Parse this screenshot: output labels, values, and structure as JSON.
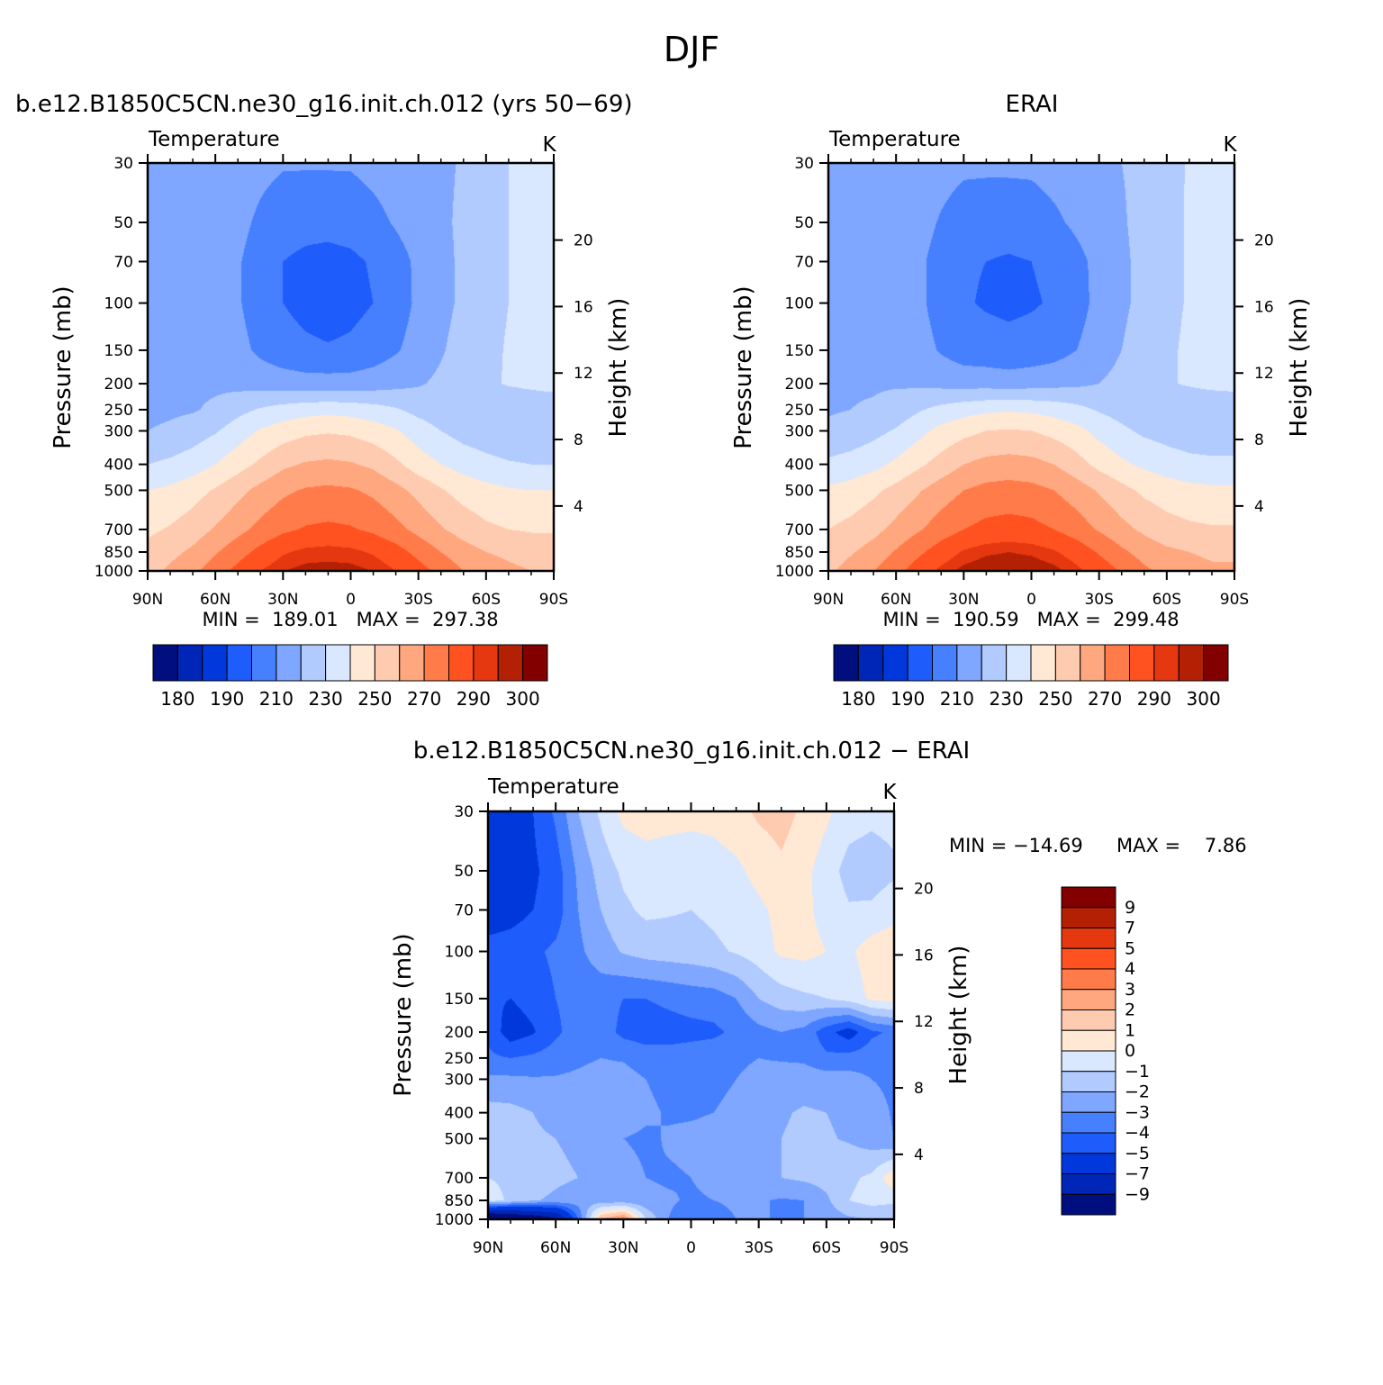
{
  "figure": {
    "season": "DJF"
  },
  "palette": {
    "temperature": [
      "#000e7e",
      "#0026b8",
      "#0038dc",
      "#1f5cfc",
      "#4680ff",
      "#7fa7ff",
      "#b2cbff",
      "#d9e8ff",
      "#ffe8d4",
      "#ffcbb0",
      "#ffa77e",
      "#ff7c4a",
      "#ff5220",
      "#e53810",
      "#b42004",
      "#820000"
    ],
    "difference": [
      "#000e7e",
      "#0026b8",
      "#0038dc",
      "#1f5cfc",
      "#4680ff",
      "#7fa7ff",
      "#b2cbff",
      "#d9e8ff",
      "#ffe8d4",
      "#ffcbb0",
      "#ffa77e",
      "#ff7c4a",
      "#ff5220",
      "#e53810",
      "#b42004",
      "#820000"
    ]
  },
  "chart_data": [
    {
      "type": "heatmap",
      "id": "model",
      "title": "b.e12.B1850C5CN.ne30_g16.init.ch.012 (yrs 50−69)",
      "subtitle": "Temperature",
      "units": "K",
      "ylabel": "Pressure (mb)",
      "ylabel_right": "Height (km)",
      "x_ticks": [
        "90N",
        "60N",
        "30N",
        "0",
        "30S",
        "60S",
        "90S"
      ],
      "y_ticks": [
        30,
        50,
        70,
        100,
        150,
        200,
        250,
        300,
        400,
        500,
        700,
        850,
        1000
      ],
      "y_right_ticks": [
        4,
        8,
        12,
        16,
        20
      ],
      "ylim": [
        1000,
        30
      ],
      "y_scale": "log",
      "stats": "MIN =  189.01   MAX =  297.38",
      "colorbar_ticks": [
        180,
        190,
        210,
        230,
        250,
        270,
        290,
        300
      ],
      "colorbar_orientation": "horizontal",
      "levels": [
        180,
        185,
        190,
        200,
        210,
        220,
        230,
        240,
        250,
        260,
        270,
        280,
        290,
        295,
        300
      ],
      "field": [
        [
          210,
          214,
          216,
          217,
          216,
          213,
          211,
          211,
          211,
          211,
          213,
          215,
          216,
          218,
          221,
          225,
          230,
          234,
          236
        ],
        [
          212,
          214,
          215,
          215,
          213,
          208,
          204,
          203,
          203,
          204,
          207,
          211,
          215,
          218,
          222,
          226,
          230,
          234,
          236
        ],
        [
          213,
          214,
          215,
          214,
          211,
          205,
          200,
          198,
          197,
          198,
          201,
          206,
          212,
          217,
          222,
          226,
          230,
          234,
          236
        ],
        [
          215,
          215,
          215,
          214,
          211,
          205,
          200,
          197,
          195,
          197,
          200,
          205,
          212,
          217,
          222,
          226,
          230,
          233,
          235
        ],
        [
          217,
          217,
          216,
          216,
          213,
          208,
          204,
          202,
          201,
          202,
          205,
          209,
          214,
          219,
          224,
          227,
          231,
          233,
          235
        ],
        [
          218,
          218,
          218,
          218,
          217,
          216,
          215,
          214,
          214,
          214,
          215,
          217,
          219,
          222,
          225,
          228,
          231,
          233,
          235
        ],
        [
          217,
          218,
          219,
          222,
          227,
          231,
          234,
          236,
          237,
          236,
          234,
          231,
          227,
          224,
          222,
          221,
          220,
          220,
          220
        ],
        [
          220,
          222,
          225,
          229,
          235,
          241,
          245,
          248,
          249,
          248,
          245,
          241,
          235,
          230,
          226,
          224,
          222,
          222,
          222
        ],
        [
          230,
          232,
          235,
          240,
          246,
          252,
          258,
          261,
          262,
          261,
          258,
          252,
          245,
          240,
          236,
          233,
          231,
          230,
          230
        ],
        [
          240,
          242,
          246,
          251,
          257,
          263,
          268,
          271,
          272,
          271,
          268,
          263,
          257,
          251,
          246,
          243,
          241,
          240,
          240
        ],
        [
          248,
          251,
          255,
          261,
          267,
          273,
          278,
          281,
          282,
          281,
          278,
          273,
          267,
          261,
          256,
          252,
          250,
          249,
          249
        ],
        [
          253,
          257,
          262,
          269,
          276,
          283,
          289,
          292,
          293,
          292,
          289,
          284,
          277,
          270,
          264,
          260,
          258,
          256,
          256
        ],
        [
          256,
          262,
          268,
          275,
          283,
          290,
          295,
          297,
          297,
          297,
          295,
          290,
          284,
          277,
          270,
          265,
          262,
          260,
          260
        ]
      ]
    },
    {
      "type": "heatmap",
      "id": "obs",
      "title": "ERAI",
      "subtitle": "Temperature",
      "units": "K",
      "ylabel": "Pressure (mb)",
      "ylabel_right": "Height (km)",
      "x_ticks": [
        "90N",
        "60N",
        "30N",
        "0",
        "30S",
        "60S",
        "90S"
      ],
      "y_ticks": [
        30,
        50,
        70,
        100,
        150,
        200,
        250,
        300,
        400,
        500,
        700,
        850,
        1000
      ],
      "y_right_ticks": [
        4,
        8,
        12,
        16,
        20
      ],
      "ylim": [
        1000,
        30
      ],
      "y_scale": "log",
      "stats": "MIN =  190.59   MAX =  299.48",
      "colorbar_ticks": [
        180,
        190,
        210,
        230,
        250,
        270,
        290,
        300
      ],
      "colorbar_orientation": "horizontal",
      "levels": [
        180,
        185,
        190,
        200,
        210,
        220,
        230,
        240,
        250,
        260,
        270,
        280,
        290,
        295,
        300
      ],
      "field": [
        [
          212,
          216,
          218,
          218,
          217,
          214,
          212,
          212,
          212,
          212,
          214,
          216,
          218,
          220,
          222,
          226,
          231,
          235,
          238
        ],
        [
          214,
          216,
          217,
          216,
          214,
          209,
          205,
          204,
          204,
          205,
          208,
          212,
          216,
          219,
          223,
          227,
          231,
          235,
          237
        ],
        [
          215,
          216,
          216,
          215,
          212,
          206,
          201,
          200,
          199,
          200,
          202,
          207,
          213,
          218,
          223,
          227,
          231,
          235,
          237
        ],
        [
          216,
          216,
          216,
          215,
          212,
          206,
          201,
          199,
          198,
          199,
          201,
          206,
          213,
          218,
          223,
          227,
          231,
          234,
          236
        ],
        [
          218,
          218,
          217,
          216,
          214,
          209,
          205,
          204,
          203,
          204,
          206,
          210,
          215,
          220,
          225,
          228,
          232,
          234,
          236
        ],
        [
          219,
          219,
          219,
          219,
          218,
          217,
          216,
          216,
          215,
          216,
          217,
          218,
          220,
          223,
          226,
          229,
          231,
          233,
          234
        ],
        [
          219,
          220,
          221,
          224,
          229,
          233,
          236,
          238,
          239,
          238,
          236,
          233,
          229,
          226,
          224,
          223,
          222,
          221,
          221
        ],
        [
          222,
          224,
          227,
          231,
          237,
          243,
          247,
          250,
          251,
          250,
          247,
          243,
          237,
          232,
          228,
          226,
          224,
          224,
          224
        ],
        [
          232,
          234,
          237,
          242,
          248,
          254,
          260,
          263,
          264,
          263,
          260,
          254,
          247,
          242,
          238,
          235,
          233,
          232,
          232
        ],
        [
          242,
          244,
          248,
          253,
          259,
          265,
          270,
          273,
          274,
          273,
          270,
          265,
          259,
          253,
          248,
          245,
          243,
          242,
          242
        ],
        [
          250,
          253,
          257,
          263,
          269,
          275,
          280,
          283,
          284,
          283,
          280,
          275,
          269,
          263,
          258,
          254,
          252,
          251,
          251
        ],
        [
          255,
          259,
          264,
          271,
          278,
          285,
          291,
          294,
          295,
          294,
          291,
          286,
          279,
          272,
          266,
          262,
          260,
          258,
          258
        ],
        [
          258,
          264,
          270,
          277,
          285,
          292,
          297,
          299,
          299,
          299,
          297,
          292,
          286,
          279,
          272,
          267,
          264,
          262,
          262
        ]
      ]
    },
    {
      "type": "heatmap",
      "id": "diff",
      "title": "b.e12.B1850C5CN.ne30_g16.init.ch.012 − ERAI",
      "subtitle": "Temperature",
      "units": "K",
      "ylabel": "Pressure (mb)",
      "ylabel_right": "Height (km)",
      "x_ticks": [
        "90N",
        "60N",
        "30N",
        "0",
        "30S",
        "60S",
        "90S"
      ],
      "y_ticks": [
        30,
        50,
        70,
        100,
        150,
        200,
        250,
        300,
        400,
        500,
        700,
        850,
        1000
      ],
      "y_right_ticks": [
        4,
        8,
        12,
        16,
        20
      ],
      "ylim": [
        1000,
        30
      ],
      "y_scale": "log",
      "stats_min": "MIN = −14.69",
      "stats_max": "MAX =    7.86",
      "colorbar_ticks": [
        "9",
        "7",
        "5",
        "4",
        "3",
        "2",
        "1",
        "0",
        "−1",
        "−2",
        "−3",
        "−4",
        "−5",
        "−7",
        "−9"
      ],
      "colorbar_orientation": "vertical",
      "levels": [
        -9,
        -7,
        -5,
        -4,
        -3,
        -2,
        -1,
        0,
        1,
        2,
        3,
        4,
        5,
        7,
        9
      ],
      "field": [
        [
          -6.5,
          -5.8,
          -5.0,
          -3.8,
          -2.0,
          -0.8,
          0.3,
          0.5,
          0.4,
          0.3,
          0.3,
          0.6,
          1.2,
          1.4,
          0.8,
          0.2,
          -0.5,
          -0.7,
          -0.6
        ],
        [
          -6.0,
          -5.7,
          -5.2,
          -4.5,
          -2.8,
          -1.6,
          -0.8,
          -0.5,
          -0.6,
          -0.6,
          -0.4,
          -0.2,
          0.3,
          0.8,
          0.3,
          -0.5,
          -1.4,
          -1.6,
          -1.2
        ],
        [
          -5.8,
          -5.5,
          -5.0,
          -4.5,
          -3.0,
          -2.0,
          -1.2,
          -0.8,
          -0.9,
          -1.0,
          -0.8,
          -0.5,
          -0.2,
          0.3,
          0.2,
          -0.3,
          -0.9,
          -0.8,
          -0.3
        ],
        [
          -4.5,
          -4.4,
          -4.2,
          -3.8,
          -3.2,
          -2.5,
          -1.9,
          -1.6,
          -1.5,
          -1.4,
          -1.2,
          -0.9,
          -0.5,
          0.2,
          0.3,
          0.0,
          -0.2,
          0.5,
          0.6
        ],
        [
          -4.8,
          -5.0,
          -4.6,
          -4.0,
          -3.6,
          -3.6,
          -4.0,
          -4.0,
          -3.8,
          -3.6,
          -3.5,
          -3.0,
          -2.0,
          -1.5,
          -1.2,
          -1.0,
          -0.6,
          0.2,
          0.4
        ],
        [
          -4.2,
          -5.6,
          -5.1,
          -4.2,
          -3.5,
          -3.4,
          -4.3,
          -4.5,
          -4.4,
          -4.3,
          -4.2,
          -3.8,
          -3.3,
          -3.0,
          -3.3,
          -4.6,
          -5.6,
          -4.2,
          -3.8
        ],
        [
          -3.8,
          -4.0,
          -3.8,
          -3.5,
          -3.2,
          -3.0,
          -3.1,
          -3.5,
          -3.6,
          -3.5,
          -3.4,
          -3.2,
          -3.0,
          -3.1,
          -3.2,
          -3.8,
          -3.6,
          -3.4,
          -3.4
        ],
        [
          -2.8,
          -2.8,
          -2.9,
          -2.9,
          -2.8,
          -2.6,
          -2.6,
          -3.0,
          -3.3,
          -3.3,
          -3.2,
          -3.0,
          -2.7,
          -2.5,
          -2.4,
          -2.5,
          -2.6,
          -3.0,
          -3.2
        ],
        [
          -1.6,
          -1.7,
          -2.0,
          -2.2,
          -2.3,
          -2.3,
          -2.4,
          -2.8,
          -3.1,
          -3.1,
          -3.0,
          -2.8,
          -2.5,
          -2.1,
          -1.9,
          -2.0,
          -2.2,
          -2.6,
          -3.1
        ],
        [
          -1.6,
          -1.7,
          -1.9,
          -2.0,
          -2.2,
          -2.4,
          -3.0,
          -3.2,
          -2.9,
          -2.8,
          -2.7,
          -2.4,
          -2.2,
          -2.0,
          -1.8,
          -1.9,
          -2.1,
          -2.5,
          -3.0
        ],
        [
          -1.0,
          -1.2,
          -1.5,
          -1.8,
          -2.0,
          -2.2,
          -2.6,
          -3.0,
          -3.1,
          -3.0,
          -2.8,
          -2.5,
          -2.3,
          -2.0,
          -1.8,
          -1.6,
          -1.2,
          -0.8,
          0.8
        ],
        [
          -0.5,
          -1.2,
          -1.9,
          -2.2,
          -2.5,
          -2.6,
          -2.7,
          -2.8,
          -2.9,
          -3.1,
          -3.0,
          -2.8,
          -2.9,
          -3.1,
          -3.0,
          -2.2,
          -1.0,
          -0.6,
          -0.8
        ],
        [
          -13.0,
          -12.0,
          -11.0,
          -9.5,
          -4.0,
          2.0,
          3.5,
          -1.0,
          -3.0,
          -3.5,
          -3.5,
          -3.0,
          -3.0,
          -3.0,
          -3.0,
          -2.6,
          -2.2,
          -2.0,
          -2.0
        ]
      ]
    }
  ]
}
